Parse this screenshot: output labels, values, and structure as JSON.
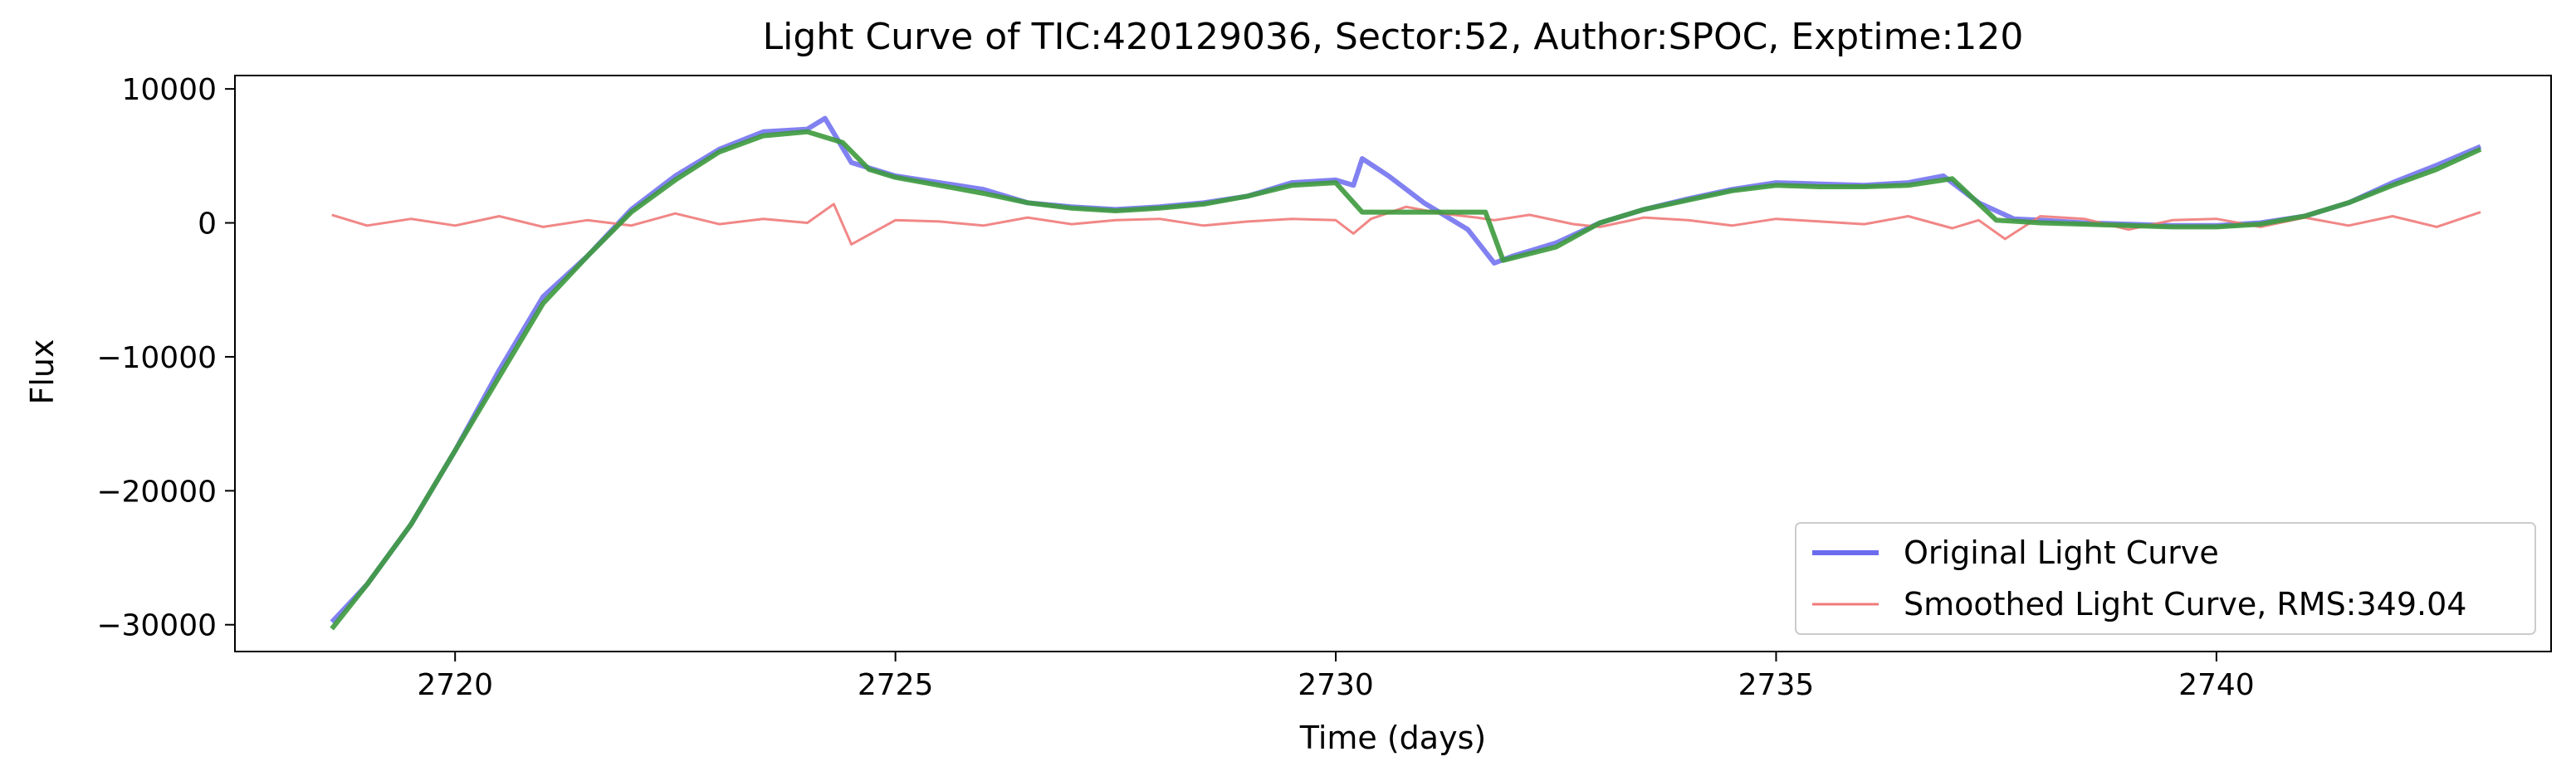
{
  "chart_data": {
    "type": "line",
    "title": "Light Curve of TIC:420129036, Sector:52, Author:SPOC, Exptime:120",
    "xlabel": "Time (days)",
    "ylabel": "Flux",
    "xlim": [
      2717.5,
      2743.8
    ],
    "ylim": [
      -32000,
      11000
    ],
    "xticks": [
      2720,
      2725,
      2730,
      2735,
      2740
    ],
    "yticks": [
      10000,
      0,
      -10000,
      -20000,
      -30000
    ],
    "xtick_labels": [
      "2720",
      "2725",
      "2730",
      "2735",
      "2740"
    ],
    "ytick_labels": [
      "10000",
      "0",
      "−10000",
      "−20000",
      "−30000"
    ],
    "grid": false,
    "legend_position": "lower-right",
    "legend": [
      {
        "label": "Original Light Curve",
        "color": "#6b6bef"
      },
      {
        "label": "Smoothed Light Curve, RMS:349.04",
        "color": "#f07a7a"
      }
    ],
    "series": [
      {
        "name": "Original Light Curve",
        "color": "#6b6bef",
        "x": [
          2718.6,
          2719.0,
          2719.5,
          2720.0,
          2720.5,
          2721.0,
          2721.5,
          2722.0,
          2722.5,
          2723.0,
          2723.5,
          2724.0,
          2724.2,
          2724.5,
          2725.0,
          2725.5,
          2726.0,
          2726.5,
          2727.0,
          2727.5,
          2728.0,
          2728.5,
          2729.0,
          2729.5,
          2730.0,
          2730.2,
          2730.3,
          2730.6,
          2731.0,
          2731.5,
          2731.8,
          2732.0,
          2732.5,
          2733.0,
          2733.5,
          2734.0,
          2734.5,
          2735.0,
          2735.5,
          2736.0,
          2736.5,
          2736.9,
          2737.3,
          2737.7,
          2738.0,
          2738.5,
          2739.0,
          2739.5,
          2740.0,
          2740.5,
          2741.0,
          2741.5,
          2742.0,
          2742.5,
          2743.0
        ],
        "y": [
          -29800,
          -27000,
          -22500,
          -17000,
          -11000,
          -5500,
          -2500,
          1000,
          3500,
          5500,
          6800,
          7000,
          7800,
          4500,
          3500,
          3000,
          2500,
          1500,
          1200,
          1000,
          1200,
          1500,
          2000,
          3000,
          3200,
          2800,
          4800,
          3500,
          1500,
          -500,
          -3000,
          -2500,
          -1500,
          0,
          1000,
          1800,
          2500,
          3000,
          2900,
          2800,
          3000,
          3500,
          1500,
          300,
          200,
          0,
          -100,
          -200,
          -200,
          0,
          500,
          1500,
          3000,
          4300,
          5700
        ]
      },
      {
        "name": "Smoothed Light Curve, RMS:349.04",
        "color": "#f07a7a",
        "x": [
          2718.6,
          2719.0,
          2719.5,
          2720.0,
          2720.5,
          2721.0,
          2721.5,
          2722.0,
          2722.5,
          2723.0,
          2723.5,
          2724.0,
          2724.3,
          2724.5,
          2725.0,
          2725.5,
          2726.0,
          2726.5,
          2727.0,
          2727.5,
          2728.0,
          2728.5,
          2729.0,
          2729.5,
          2730.0,
          2730.2,
          2730.4,
          2730.8,
          2731.2,
          2731.6,
          2731.8,
          2732.2,
          2732.7,
          2733.0,
          2733.5,
          2734.0,
          2734.5,
          2735.0,
          2735.5,
          2736.0,
          2736.5,
          2737.0,
          2737.3,
          2737.6,
          2738.0,
          2738.5,
          2739.0,
          2739.5,
          2740.0,
          2740.5,
          2741.0,
          2741.5,
          2742.0,
          2742.5,
          2743.0
        ],
        "y": [
          600,
          -200,
          300,
          -200,
          500,
          -300,
          200,
          -200,
          700,
          -100,
          300,
          0,
          1400,
          -1600,
          200,
          100,
          -200,
          400,
          -100,
          200,
          300,
          -200,
          100,
          300,
          200,
          -800,
          300,
          1200,
          700,
          400,
          200,
          600,
          -100,
          -300,
          400,
          200,
          -200,
          300,
          100,
          -100,
          500,
          -400,
          200,
          -1200,
          500,
          300,
          -500,
          200,
          300,
          -300,
          400,
          -200,
          500,
          -300,
          800
        ]
      },
      {
        "name": "",
        "color": "#3d9a3d",
        "x": [
          2718.6,
          2719.0,
          2719.5,
          2720.0,
          2720.5,
          2721.0,
          2721.5,
          2722.0,
          2722.5,
          2723.0,
          2723.5,
          2724.0,
          2724.4,
          2724.7,
          2725.0,
          2725.5,
          2726.0,
          2726.5,
          2727.0,
          2727.5,
          2728.0,
          2728.5,
          2729.0,
          2729.5,
          2730.0,
          2730.3,
          2730.5,
          2731.0,
          2731.5,
          2731.7,
          2731.9,
          2732.5,
          2733.0,
          2733.5,
          2734.0,
          2734.5,
          2735.0,
          2735.5,
          2736.0,
          2736.5,
          2737.0,
          2737.5,
          2738.0,
          2738.5,
          2739.0,
          2739.5,
          2740.0,
          2740.5,
          2741.0,
          2741.5,
          2742.0,
          2742.5,
          2743.0
        ],
        "y": [
          -30300,
          -27000,
          -22500,
          -17000,
          -11500,
          -6000,
          -2500,
          800,
          3200,
          5300,
          6500,
          6800,
          6000,
          4000,
          3400,
          2800,
          2200,
          1500,
          1100,
          900,
          1100,
          1400,
          2000,
          2800,
          3000,
          800,
          800,
          800,
          800,
          800,
          -2800,
          -1800,
          0,
          1000,
          1700,
          2400,
          2800,
          2700,
          2700,
          2800,
          3300,
          200,
          0,
          -100,
          -200,
          -300,
          -300,
          -100,
          500,
          1500,
          2800,
          4000,
          5500
        ]
      }
    ]
  }
}
